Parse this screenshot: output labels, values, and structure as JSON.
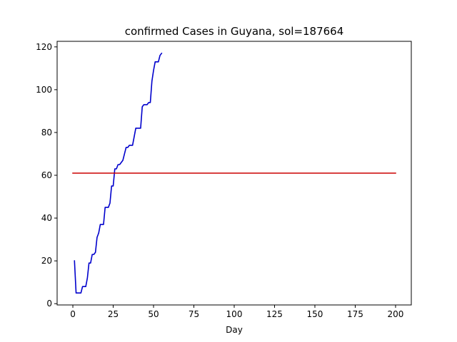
{
  "chart_data": {
    "type": "line",
    "title": "confirmed Cases in Guyana, sol=187664",
    "xlabel": "Day",
    "ylabel": "",
    "xlim": [
      -9.75,
      209.75
    ],
    "ylim": [
      -0.6,
      122.6
    ],
    "xticks": [
      0,
      25,
      50,
      75,
      100,
      125,
      150,
      175,
      200
    ],
    "yticks": [
      0,
      20,
      40,
      60,
      80,
      100,
      120
    ],
    "grid": false,
    "legend": "none",
    "series": [
      {
        "color": "#0000cc",
        "x": [
          1,
          2,
          3,
          4,
          5,
          6,
          7,
          8,
          9,
          10,
          11,
          12,
          13,
          14,
          15,
          16,
          17,
          18,
          19,
          20,
          21,
          22,
          23,
          24,
          25,
          26,
          27,
          28,
          29,
          30,
          31,
          32,
          33,
          34,
          35,
          36,
          37,
          38,
          39,
          40,
          41,
          42,
          43,
          44,
          45,
          46,
          47,
          48,
          49,
          50,
          51,
          52,
          53,
          54,
          55
        ],
        "values": [
          20,
          5,
          5,
          5,
          5,
          8,
          8,
          8,
          12,
          19,
          19,
          23,
          23,
          24,
          31,
          33,
          37,
          37,
          37,
          45,
          45,
          45,
          47,
          55,
          55,
          63,
          63,
          65,
          65,
          66,
          67,
          70,
          73,
          73,
          74,
          74,
          74,
          78,
          82,
          82,
          82,
          82,
          92,
          93,
          93,
          93,
          94,
          94,
          104,
          109,
          113,
          113,
          113,
          116,
          117
        ]
      },
      {
        "color": "#cc0000",
        "x": [
          0,
          200
        ],
        "values": [
          61,
          61
        ]
      }
    ]
  }
}
